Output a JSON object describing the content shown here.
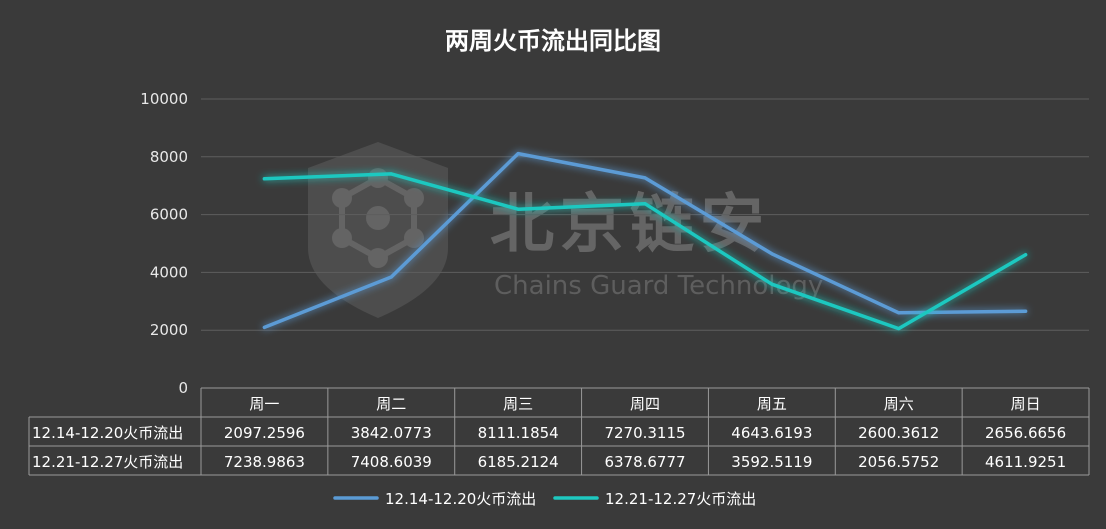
{
  "chart_data": {
    "type": "line",
    "title": "两周火币流出同比图",
    "categories": [
      "周一",
      "周二",
      "周三",
      "周四",
      "周五",
      "周六",
      "周日"
    ],
    "series": [
      {
        "name": "12.14-12.20火币流出",
        "values": [
          2097.2596,
          3842.0773,
          8111.1854,
          7270.3115,
          4643.6193,
          2600.3612,
          2656.6656
        ],
        "labels": [
          "2097.2596",
          "3842.0773",
          "8111.1854",
          "7270.3115",
          "4643.6193",
          "2600.3612",
          "2656.6656"
        ],
        "color": "#5b9bd5"
      },
      {
        "name": "12.21-12.27火币流出",
        "values": [
          7238.9863,
          7408.6039,
          6185.2124,
          6378.6777,
          3592.5119,
          2056.5752,
          4611.9251
        ],
        "labels": [
          "7238.9863",
          "7408.6039",
          "6185.2124",
          "6378.6777",
          "3592.5119",
          "2056.5752",
          "4611.9251"
        ],
        "color": "#1ec8c0"
      }
    ],
    "ylim": [
      0,
      10000
    ],
    "yticks": [
      "0",
      "2000",
      "4000",
      "6000",
      "8000",
      "10000"
    ],
    "grid": true,
    "legend": "bottom",
    "data_table": true
  },
  "watermark": {
    "name_cn": "北京链安",
    "name_en": "Chains Guard Technology",
    "logo_icon": "shield-hexagon-logo-icon"
  }
}
